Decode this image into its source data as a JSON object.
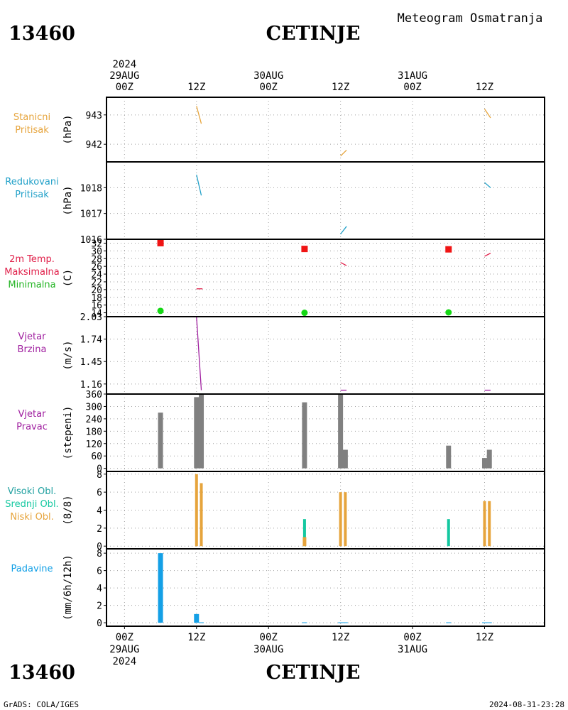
{
  "header": {
    "station_id": "13460",
    "station_name": "CETINJE",
    "title": "Meteogram Osmatranja"
  },
  "footer": {
    "station_id": "13460",
    "station_name": "CETINJE",
    "credit": "GrADS: COLA/IGES",
    "timestamp": "2024-08-31-23:28"
  },
  "time_axis": {
    "top": [
      {
        "t": 0,
        "lines": [
          "2024",
          "29AUG",
          "00Z"
        ]
      },
      {
        "t": 12,
        "lines": [
          "12Z"
        ]
      },
      {
        "t": 24,
        "lines": [
          "30AUG",
          "00Z"
        ]
      },
      {
        "t": 36,
        "lines": [
          "12Z"
        ]
      },
      {
        "t": 48,
        "lines": [
          "31AUG",
          "00Z"
        ]
      },
      {
        "t": 60,
        "lines": [
          "12Z"
        ]
      }
    ],
    "bottom": [
      {
        "t": 0,
        "lines": [
          "00Z",
          "29AUG",
          "2024"
        ]
      },
      {
        "t": 12,
        "lines": [
          "12Z"
        ]
      },
      {
        "t": 24,
        "lines": [
          "00Z",
          "30AUG"
        ]
      },
      {
        "t": 36,
        "lines": [
          "12Z"
        ]
      },
      {
        "t": 48,
        "lines": [
          "00Z",
          "31AUG"
        ]
      },
      {
        "t": 60,
        "lines": [
          "12Z"
        ]
      }
    ],
    "range_hours": [
      -3,
      70
    ]
  },
  "colors": {
    "stanicni": "#e6a43c",
    "redukovani": "#20a0c8",
    "temp_label": "#e0204a",
    "min_label": "#22b422",
    "max_marker": "#f01414",
    "min_marker": "#14d814",
    "wind": "#a020a0",
    "dir_bar": "#808080",
    "visoki": "#20a0a0",
    "srednji": "#14c8a0",
    "niski": "#e6a43c",
    "padavine": "#14a0e6",
    "grid": "#a0a0a0"
  },
  "chart_data": [
    {
      "type": "line",
      "panel": "stanicni",
      "labels": [
        "Stanicni",
        "Pritisak"
      ],
      "ylabel": "(hPa)",
      "ylim": [
        941.4,
        943.6
      ],
      "yticks": [
        942,
        943
      ],
      "series": [
        {
          "x": [
            12,
            12.8
          ],
          "y": [
            943.3,
            942.7
          ]
        },
        {
          "x": [
            36,
            37
          ],
          "y": [
            941.6,
            941.8
          ]
        },
        {
          "x": [
            60,
            61
          ],
          "y": [
            943.2,
            942.9
          ]
        }
      ]
    },
    {
      "type": "line",
      "panel": "redukovani",
      "labels": [
        "Redukovani",
        "Pritisak"
      ],
      "ylabel": "(hPa)",
      "ylim": [
        1016,
        1019
      ],
      "yticks": [
        1016,
        1017,
        1018
      ],
      "series": [
        {
          "x": [
            12,
            12.8
          ],
          "y": [
            1018.5,
            1017.7
          ]
        },
        {
          "x": [
            36,
            37
          ],
          "y": [
            1016.2,
            1016.5
          ]
        },
        {
          "x": [
            60,
            61
          ],
          "y": [
            1018.2,
            1018.0
          ]
        }
      ]
    },
    {
      "type": "scatter",
      "panel": "temperatura",
      "labels": [
        "2m Temp.",
        "Maksimalna",
        "Minimalna"
      ],
      "ylabel": "(C)",
      "ylim": [
        13,
        33
      ],
      "yticks": [
        14,
        16,
        18,
        20,
        22,
        24,
        26,
        28,
        30,
        32
      ],
      "max": [
        {
          "x": 6,
          "y": 32
        },
        {
          "x": 30,
          "y": 30.5
        },
        {
          "x": 54,
          "y": 30.4
        }
      ],
      "min": [
        {
          "x": 6,
          "y": 14.5
        },
        {
          "x": 30,
          "y": 14
        },
        {
          "x": 54,
          "y": 14.1
        }
      ],
      "series": [
        {
          "x": [
            12,
            13
          ],
          "y": [
            20.2,
            20.2
          ]
        },
        {
          "x": [
            36,
            37
          ],
          "y": [
            27,
            26.2
          ]
        },
        {
          "x": [
            60,
            61
          ],
          "y": [
            28.6,
            29.4
          ]
        }
      ]
    },
    {
      "type": "line",
      "panel": "brzina",
      "labels": [
        "Vjetar",
        "Brzina"
      ],
      "ylabel": "(m/s)",
      "ylim": [
        1.03,
        2.03
      ],
      "yticks": [
        1.16,
        1.45,
        1.74,
        2.03
      ],
      "series": [
        {
          "x": [
            12,
            12.8
          ],
          "y": [
            2.03,
            1.08
          ]
        },
        {
          "x": [
            36,
            37
          ],
          "y": [
            1.08,
            1.08
          ]
        },
        {
          "x": [
            60,
            61
          ],
          "y": [
            1.08,
            1.08
          ]
        }
      ]
    },
    {
      "type": "bar",
      "panel": "pravac",
      "labels": [
        "Vjetar",
        "Pravac"
      ],
      "ylabel": "(stepeni)",
      "ylim": [
        -15,
        360
      ],
      "yticks": [
        0,
        60,
        120,
        180,
        240,
        300,
        360
      ],
      "bars": [
        {
          "x": 6,
          "value": 270
        },
        {
          "x": 12,
          "value": 345
        },
        {
          "x": 12.8,
          "value": 360
        },
        {
          "x": 30,
          "value": 320
        },
        {
          "x": 36,
          "value": 360
        },
        {
          "x": 36.8,
          "value": 90
        },
        {
          "x": 54,
          "value": 110
        },
        {
          "x": 60,
          "value": 50
        },
        {
          "x": 60.8,
          "value": 90
        }
      ]
    },
    {
      "type": "bar",
      "panel": "oblacnost",
      "labels": [
        "Visoki Obl.",
        "Srednji Obl.",
        "Niski Obl."
      ],
      "ylabel": "(8/8)",
      "ylim": [
        -0.3,
        8.3
      ],
      "yticks": [
        0,
        2,
        4,
        6,
        8
      ],
      "bars": [
        {
          "x": 30,
          "value": 3,
          "layer": "srednji"
        },
        {
          "x": 30,
          "value": 1,
          "layer": "niski"
        },
        {
          "x": 54,
          "value": 3,
          "layer": "srednji"
        },
        {
          "x": 12,
          "value": 8,
          "layer": "niski"
        },
        {
          "x": 12.8,
          "value": 7,
          "layer": "niski"
        },
        {
          "x": 36,
          "value": 6,
          "layer": "niski"
        },
        {
          "x": 36.8,
          "value": 6,
          "layer": "niski"
        },
        {
          "x": 60,
          "value": 5,
          "layer": "niski"
        },
        {
          "x": 60.8,
          "value": 5,
          "layer": "niski"
        }
      ]
    },
    {
      "type": "bar",
      "panel": "padavine",
      "labels": [
        "Padavine"
      ],
      "ylabel": "(mm/6h/12h)",
      "ylim": [
        -0.4,
        8.5
      ],
      "yticks": [
        0,
        2,
        4,
        6,
        8
      ],
      "bars": [
        {
          "x": 6,
          "value": 8
        },
        {
          "x": 12,
          "value": 1
        },
        {
          "x": 12.8,
          "value": 0.05
        },
        {
          "x": 30,
          "value": 0.05
        },
        {
          "x": 36,
          "value": 0.05
        },
        {
          "x": 36.8,
          "value": 0.05
        },
        {
          "x": 54,
          "value": 0.05
        },
        {
          "x": 60,
          "value": 0.05
        },
        {
          "x": 60.8,
          "value": 0.05
        }
      ]
    }
  ]
}
